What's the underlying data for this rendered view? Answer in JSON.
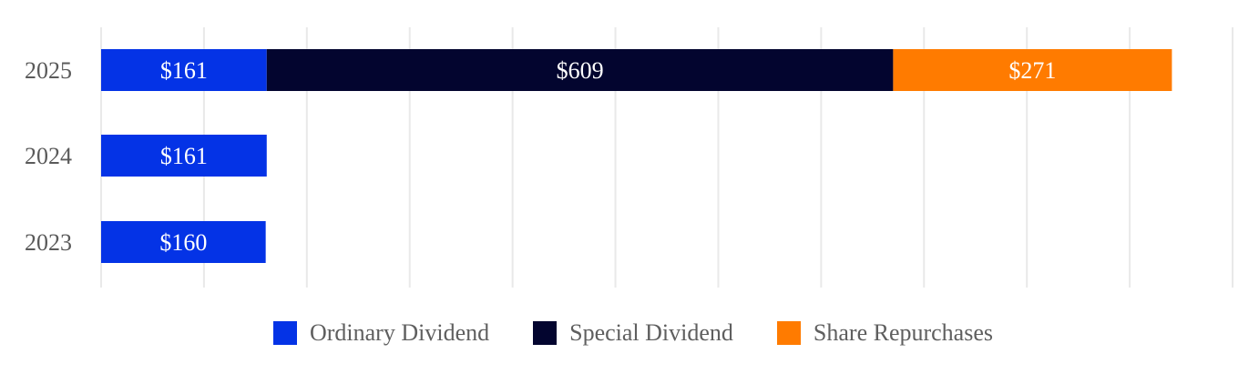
{
  "chart_data": {
    "type": "bar",
    "orientation": "horizontal",
    "stacked": true,
    "categories": [
      "2025",
      "2024",
      "2023"
    ],
    "series": [
      {
        "name": "Ordinary Dividend",
        "color": "#0433e6",
        "values": [
          161,
          161,
          160
        ],
        "labels": [
          "$161",
          "$161",
          "$160"
        ]
      },
      {
        "name": "Special Dividend",
        "color": "#03052f",
        "values": [
          609,
          0,
          0
        ],
        "labels": [
          "$609",
          "",
          ""
        ]
      },
      {
        "name": "Share Repurchases",
        "color": "#ff7b00",
        "values": [
          271,
          0,
          0
        ],
        "labels": [
          "$271",
          "",
          ""
        ]
      }
    ],
    "xlim": [
      0,
      1100
    ],
    "grid": true,
    "legend_position": "bottom"
  }
}
